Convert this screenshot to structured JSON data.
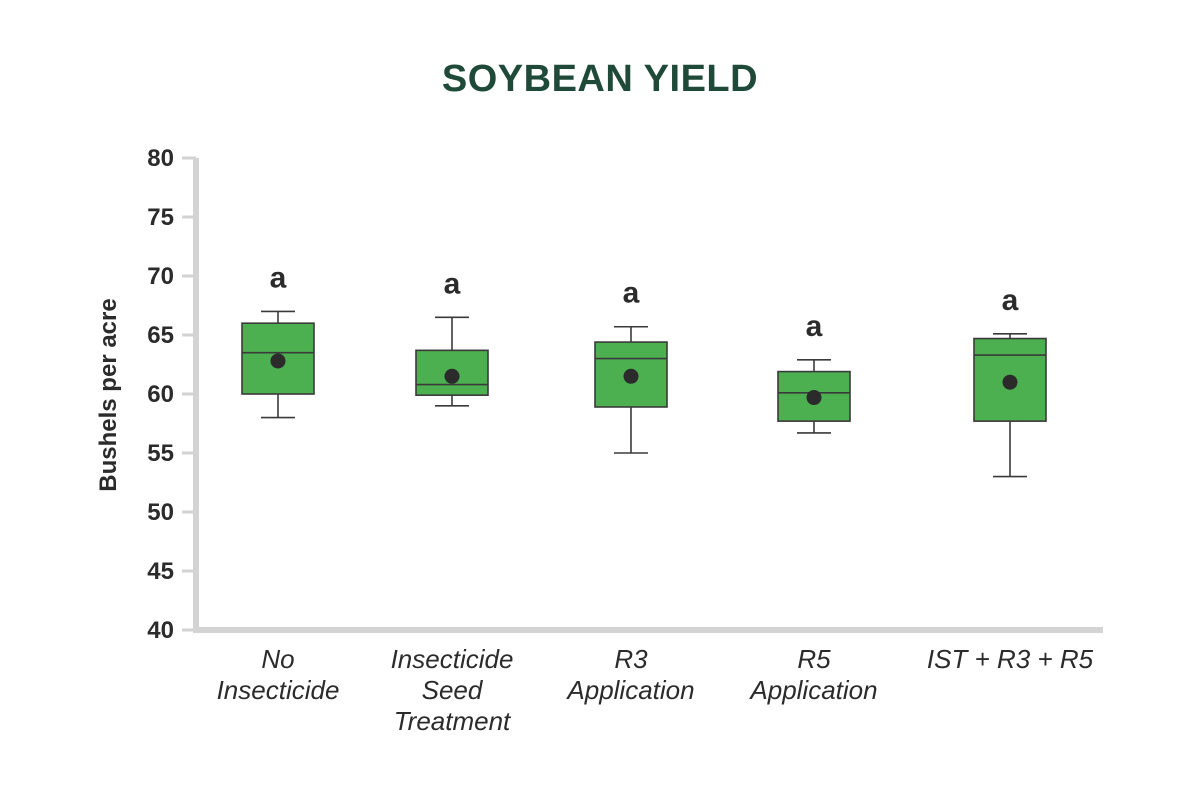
{
  "chart_data": {
    "type": "box",
    "title": "SOYBEAN YIELD",
    "xlabel": "",
    "ylabel": "Bushels per acre",
    "ylim": [
      40,
      80
    ],
    "yticks": [
      40,
      45,
      50,
      55,
      60,
      65,
      70,
      75,
      80
    ],
    "grid": false,
    "box_color": "#4caf50",
    "mean_marker_color": "#2b2b2b",
    "categories": [
      [
        "No",
        "Insecticide"
      ],
      [
        "Insecticide",
        "Seed",
        "Treatment"
      ],
      [
        "R3",
        "Application"
      ],
      [
        "R5",
        "Application"
      ],
      [
        "IST + R3 + R5"
      ]
    ],
    "boxes": [
      {
        "min": 58,
        "q1": 60,
        "median": 63.5,
        "q3": 66,
        "max": 67,
        "mean": 62.8,
        "significance": "a"
      },
      {
        "min": 59,
        "q1": 59.9,
        "median": 60.8,
        "q3": 63.7,
        "max": 66.5,
        "mean": 61.5,
        "significance": "a"
      },
      {
        "min": 55,
        "q1": 58.9,
        "median": 63,
        "q3": 64.4,
        "max": 65.7,
        "mean": 61.5,
        "significance": "a"
      },
      {
        "min": 56.7,
        "q1": 57.7,
        "median": 60.1,
        "q3": 61.9,
        "max": 62.9,
        "mean": 59.7,
        "significance": "a"
      },
      {
        "min": 53,
        "q1": 57.7,
        "median": 63.3,
        "q3": 64.7,
        "max": 65.1,
        "mean": 61,
        "significance": "a"
      }
    ]
  }
}
